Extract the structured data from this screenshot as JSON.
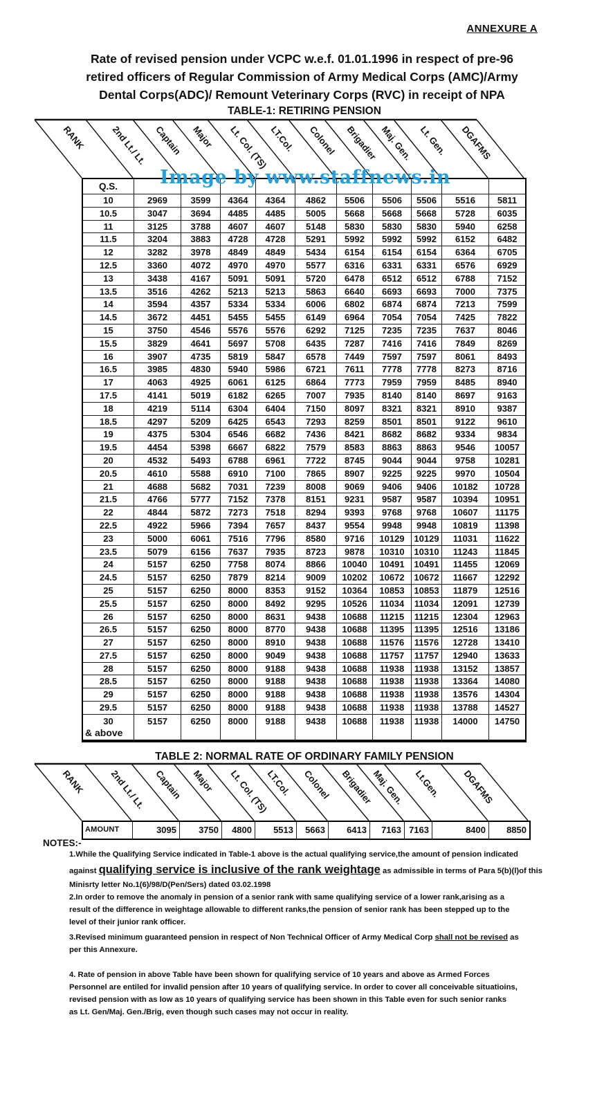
{
  "annexure": "ANNEXURE A",
  "title": "Rate of  revised pension under VCPC w.e.f. 01.01.1996 in respect of pre-96\nretired officers of  Regular Commission of Army Medical Corps (AMC)/Army\nDental Corps(ADC)/ Remount Veterinary Corps (RVC) in receipt of NPA",
  "watermark": {
    "text": "Image by www.staffnews.in",
    "color": "#259FDA"
  },
  "table1": {
    "title": "TABLE-1: RETIRING PENSION",
    "corner_label": "RANK",
    "qs_label": "Q.S.",
    "last_row_note": "& above",
    "ranks": [
      "2nd Lt./ Lt.",
      "Captain",
      "Major",
      "Lt. Col. (TS)",
      "LT.Col.",
      "Colonel",
      "Brigadier",
      "Maj. Gen.",
      "Lt. Gen.",
      "DGAFMS"
    ],
    "rows": [
      [
        "10",
        2969,
        3599,
        4364,
        4364,
        4862,
        5506,
        5506,
        5506,
        5516,
        5811
      ],
      [
        "10.5",
        3047,
        3694,
        4485,
        4485,
        5005,
        5668,
        5668,
        5668,
        5728,
        6035
      ],
      [
        "11",
        3125,
        3788,
        4607,
        4607,
        5148,
        5830,
        5830,
        5830,
        5940,
        6258
      ],
      [
        "11.5",
        3204,
        3883,
        4728,
        4728,
        5291,
        5992,
        5992,
        5992,
        6152,
        6482
      ],
      [
        "12",
        3282,
        3978,
        4849,
        4849,
        5434,
        6154,
        6154,
        6154,
        6364,
        6705
      ],
      [
        "12.5",
        3360,
        4072,
        4970,
        4970,
        5577,
        6316,
        6331,
        6331,
        6576,
        6929
      ],
      [
        "13",
        3438,
        4167,
        5091,
        5091,
        5720,
        6478,
        6512,
        6512,
        6788,
        7152
      ],
      [
        "13.5",
        3516,
        4262,
        5213,
        5213,
        5863,
        6640,
        6693,
        6693,
        7000,
        7375
      ],
      [
        "14",
        3594,
        4357,
        5334,
        5334,
        6006,
        6802,
        6874,
        6874,
        7213,
        7599
      ],
      [
        "14.5",
        3672,
        4451,
        5455,
        5455,
        6149,
        6964,
        7054,
        7054,
        7425,
        7822
      ],
      [
        "15",
        3750,
        4546,
        5576,
        5576,
        6292,
        7125,
        7235,
        7235,
        7637,
        8046
      ],
      [
        "15.5",
        3829,
        4641,
        5697,
        5708,
        6435,
        7287,
        7416,
        7416,
        7849,
        8269
      ],
      [
        "16",
        3907,
        4735,
        5819,
        5847,
        6578,
        7449,
        7597,
        7597,
        8061,
        8493
      ],
      [
        "16.5",
        3985,
        4830,
        5940,
        5986,
        6721,
        7611,
        7778,
        7778,
        8273,
        8716
      ],
      [
        "17",
        4063,
        4925,
        6061,
        6125,
        6864,
        7773,
        7959,
        7959,
        8485,
        8940
      ],
      [
        "17.5",
        4141,
        5019,
        6182,
        6265,
        7007,
        7935,
        8140,
        8140,
        8697,
        9163
      ],
      [
        "18",
        4219,
        5114,
        6304,
        6404,
        7150,
        8097,
        8321,
        8321,
        8910,
        9387
      ],
      [
        "18.5",
        4297,
        5209,
        6425,
        6543,
        7293,
        8259,
        8501,
        8501,
        9122,
        9610
      ],
      [
        "19",
        4375,
        5304,
        6546,
        6682,
        7436,
        8421,
        8682,
        8682,
        9334,
        9834
      ],
      [
        "19.5",
        4454,
        5398,
        6667,
        6822,
        7579,
        8583,
        8863,
        8863,
        9546,
        10057
      ],
      [
        "20",
        4532,
        5493,
        6788,
        6961,
        7722,
        8745,
        9044,
        9044,
        9758,
        10281
      ],
      [
        "20.5",
        4610,
        5588,
        6910,
        7100,
        7865,
        8907,
        9225,
        9225,
        9970,
        10504
      ],
      [
        "21",
        4688,
        5682,
        7031,
        7239,
        8008,
        9069,
        9406,
        9406,
        10182,
        10728
      ],
      [
        "21.5",
        4766,
        5777,
        7152,
        7378,
        8151,
        9231,
        9587,
        9587,
        10394,
        10951
      ],
      [
        "22",
        4844,
        5872,
        7273,
        7518,
        8294,
        9393,
        9768,
        9768,
        10607,
        11175
      ],
      [
        "22.5",
        4922,
        5966,
        7394,
        7657,
        8437,
        9554,
        9948,
        9948,
        10819,
        11398
      ],
      [
        "23",
        5000,
        6061,
        7516,
        7796,
        8580,
        9716,
        10129,
        10129,
        11031,
        11622
      ],
      [
        "23.5",
        5079,
        6156,
        7637,
        7935,
        8723,
        9878,
        10310,
        10310,
        11243,
        11845
      ],
      [
        "24",
        5157,
        6250,
        7758,
        8074,
        8866,
        10040,
        10491,
        10491,
        11455,
        12069
      ],
      [
        "24.5",
        5157,
        6250,
        7879,
        8214,
        9009,
        10202,
        10672,
        10672,
        11667,
        12292
      ],
      [
        "25",
        5157,
        6250,
        8000,
        8353,
        9152,
        10364,
        10853,
        10853,
        11879,
        12516
      ],
      [
        "25.5",
        5157,
        6250,
        8000,
        8492,
        9295,
        10526,
        11034,
        11034,
        12091,
        12739
      ],
      [
        "26",
        5157,
        6250,
        8000,
        8631,
        9438,
        10688,
        11215,
        11215,
        12304,
        12963
      ],
      [
        "26.5",
        5157,
        6250,
        8000,
        8770,
        9438,
        10688,
        11395,
        11395,
        12516,
        13186
      ],
      [
        "27",
        5157,
        6250,
        8000,
        8910,
        9438,
        10688,
        11576,
        11576,
        12728,
        13410
      ],
      [
        "27.5",
        5157,
        6250,
        8000,
        9049,
        9438,
        10688,
        11757,
        11757,
        12940,
        13633
      ],
      [
        "28",
        5157,
        6250,
        8000,
        9188,
        9438,
        10688,
        11938,
        11938,
        13152,
        13857
      ],
      [
        "28.5",
        5157,
        6250,
        8000,
        9188,
        9438,
        10688,
        11938,
        11938,
        13364,
        14080
      ],
      [
        "29",
        5157,
        6250,
        8000,
        9188,
        9438,
        10688,
        11938,
        11938,
        13576,
        14304
      ],
      [
        "29.5",
        5157,
        6250,
        8000,
        9188,
        9438,
        10688,
        11938,
        11938,
        13788,
        14527
      ],
      [
        "30",
        5157,
        6250,
        8000,
        9188,
        9438,
        10688,
        11938,
        11938,
        14000,
        14750
      ]
    ]
  },
  "table2": {
    "title": "TABLE 2: NORMAL RATE OF ORDINARY FAMILY PENSION",
    "corner_label": "RANK",
    "row_label": "AMOUNT",
    "ranks": [
      "2nd Lt./ Lt.",
      "Captain",
      "Major",
      "Lt. Col. (TS)",
      "LT.Col.",
      "Colonel",
      "Brigadier",
      "Maj. Gen.",
      "Lt.Gen.",
      "DGAFMS"
    ],
    "amounts": [
      3095,
      3750,
      4800,
      5513,
      5663,
      6413,
      7163,
      7163,
      8400,
      8850
    ]
  },
  "notes": {
    "heading": "NOTES:-",
    "n1a": "1.While the Qualifying Service indicated in Table-1 above is the actual qualifying service,the amount of pension indicated\nagainst ",
    "n1b": "qualifying service is inclusive of the rank weightage",
    "n1c": " as admissible in terms of Para 5(b)(l)of this\nMinisrty letter No.1(6)/98/D(Pen/Sers) dated 03.02.1998",
    "n2": "2.In order to remove the anomaly in pension of a senior rank with same qualifying service of a lower rank,arising as a\nresult of the difference in weightage allowable to different ranks,the pension of senior rank has been stepped up to the\nlevel of their junior rank officer.",
    "n3a": "3.Revised minimum guaranteed pension in respect of Non Technical Officer of Army Medical Corp ",
    "n3b": "shall not be revised",
    "n3c": " as\nper this Annexure.",
    "n4": "4.  Rate of pension in above Table have been shown for qualifying service of 10 years and  above  as Armed Forces\nPersonnel are entiled for invalid pension after 10 years of qualifying service. In order to cover all conceivable situatioins,\nrevised pension with as low as 10 years of qualifying  service has been shown in this Table even for such senior ranks\nas Lt. Gen/Maj. Gen./Brig, even though such cases may not occur in reality."
  }
}
